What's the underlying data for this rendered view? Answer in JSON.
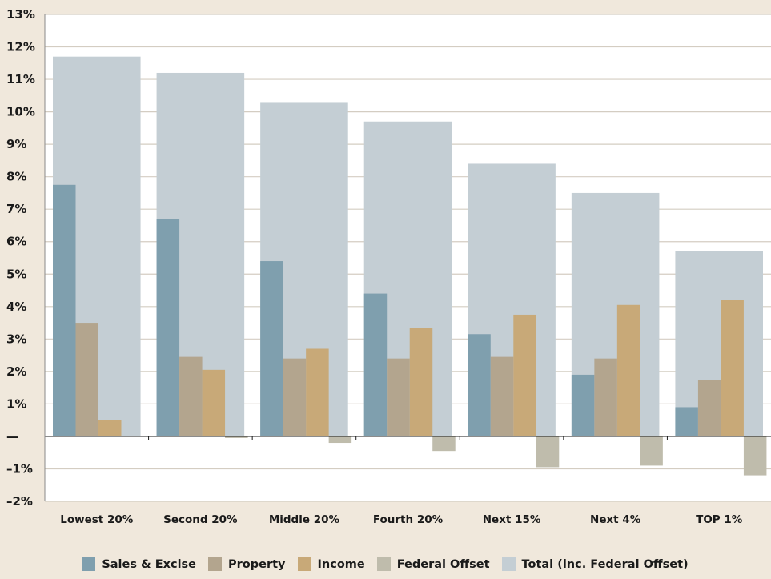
{
  "chart_data": {
    "type": "bar",
    "categories": [
      "Lowest 20%",
      "Second 20%",
      "Middle 20%",
      "Fourth 20%",
      "Next 15%",
      "Next 4%",
      "TOP 1%"
    ],
    "series": [
      {
        "name": "Sales & Excise",
        "color": "#7f9fae",
        "values": [
          7.75,
          6.7,
          5.4,
          4.4,
          3.15,
          1.9,
          0.9
        ]
      },
      {
        "name": "Property",
        "color": "#b3a58e",
        "values": [
          3.5,
          2.45,
          2.4,
          2.4,
          2.45,
          2.4,
          1.75
        ]
      },
      {
        "name": "Income",
        "color": "#c8a978",
        "values": [
          0.5,
          2.05,
          2.7,
          3.35,
          3.75,
          4.05,
          4.2
        ]
      },
      {
        "name": "Federal Offset",
        "color": "#bfbcac",
        "values": [
          0.0,
          -0.05,
          -0.2,
          -0.45,
          -0.95,
          -0.9,
          -1.2
        ]
      },
      {
        "name": "Total (inc. Federal Offset)",
        "color": "#c4ced4",
        "values": [
          11.7,
          11.2,
          10.3,
          9.7,
          8.4,
          7.5,
          5.7
        ]
      }
    ],
    "yticks": [
      "13%",
      "12%",
      "11%",
      "10%",
      "9%",
      "8%",
      "7%",
      "6%",
      "5%",
      "4%",
      "3%",
      "2%",
      "1%",
      "—",
      "–1%",
      "–2%"
    ],
    "ylim": [
      -2,
      13
    ],
    "grid": true,
    "legend_position": "bottom",
    "title": "",
    "xlabel": "",
    "ylabel": ""
  }
}
